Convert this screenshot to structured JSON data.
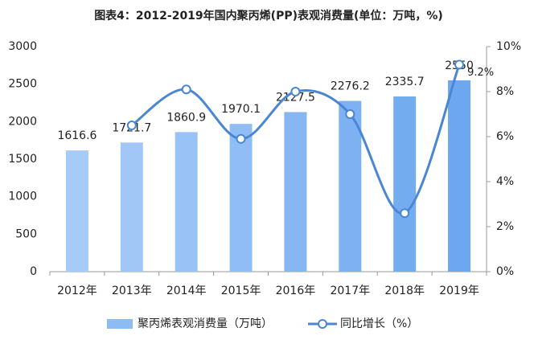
{
  "chart_data": {
    "type": "bar-line",
    "title": "图表4：2012-2019年国内聚丙烯(PP)表观消费量(单位：万吨，%)",
    "categories": [
      "2012年",
      "2013年",
      "2014年",
      "2015年",
      "2016年",
      "2017年",
      "2018年",
      "2019年"
    ],
    "series": [
      {
        "name": "聚丙烯表观消费量（万吨）",
        "type": "bar",
        "color": "#8dbcf5",
        "colors": [
          "#a6cbf7",
          "#a0c7f6",
          "#99c3f6",
          "#90bdf5",
          "#86b7f3",
          "#7db1f2",
          "#74acf0",
          "#6ca7ef"
        ],
        "values": [
          1616.6,
          1721.7,
          1860.9,
          1970.1,
          2127.5,
          2276.2,
          2335.7,
          2550
        ]
      },
      {
        "name": "同比增长（%）",
        "type": "line",
        "axis": "y2",
        "color": "#4a86d4",
        "values": [
          null,
          6.5,
          8.1,
          5.9,
          8.0,
          7.0,
          2.6,
          9.2
        ],
        "value_labels": [
          null,
          null,
          null,
          null,
          null,
          null,
          null,
          "9.2%"
        ]
      }
    ],
    "ylim": [
      0,
      3000
    ],
    "yticks": [
      0,
      500,
      1000,
      1500,
      2000,
      2500,
      3000
    ],
    "y2lim": [
      0,
      10
    ],
    "y2ticks": [
      {
        "value": 0,
        "label": "0%"
      },
      {
        "value": 2,
        "label": "2%"
      },
      {
        "value": 4,
        "label": "4%"
      },
      {
        "value": 6,
        "label": "6%"
      },
      {
        "value": 8,
        "label": "8%"
      },
      {
        "value": 10,
        "label": "10%"
      }
    ],
    "legend": "bottom"
  }
}
